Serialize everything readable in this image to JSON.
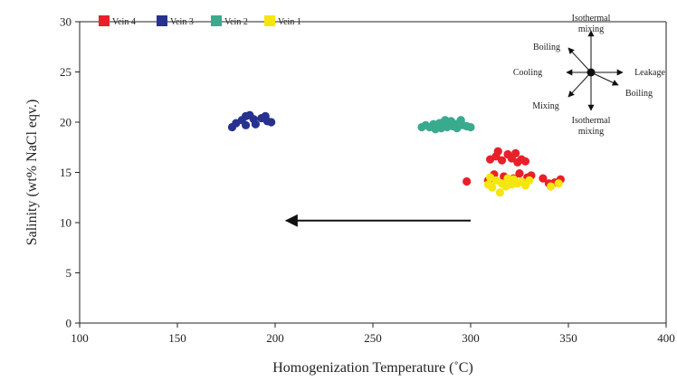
{
  "chart_data": {
    "type": "scatter",
    "xlabel": "Homogenization Temperature (˚C)",
    "ylabel": "Salinity (wt% NaCl eqv.)",
    "xlim": [
      100,
      400
    ],
    "ylim": [
      0,
      30
    ],
    "xticks": [
      "100",
      "150",
      "200",
      "250",
      "300",
      "350",
      "400"
    ],
    "yticks": [
      "0",
      "5",
      "10",
      "15",
      "20",
      "25",
      "30"
    ],
    "grid": false,
    "legend_position": "top-left",
    "series": [
      {
        "name": "Vein 4",
        "color": "#e8202a",
        "points": [
          [
            298,
            14.1
          ],
          [
            309,
            14.2
          ],
          [
            310,
            16.3
          ],
          [
            313,
            16.6
          ],
          [
            314,
            17.1
          ],
          [
            316,
            16.2
          ],
          [
            319,
            16.8
          ],
          [
            321,
            16.4
          ],
          [
            323,
            16.9
          ],
          [
            324,
            16.0
          ],
          [
            326,
            16.3
          ],
          [
            328,
            16.1
          ],
          [
            312,
            14.8
          ],
          [
            317,
            14.6
          ],
          [
            322,
            14.4
          ],
          [
            325,
            14.9
          ],
          [
            329,
            14.5
          ],
          [
            331,
            14.7
          ],
          [
            337,
            14.4
          ],
          [
            340,
            13.9
          ],
          [
            343,
            14.0
          ],
          [
            346,
            14.3
          ]
        ]
      },
      {
        "name": "Vein 3",
        "color": "#27318f",
        "points": [
          [
            178,
            19.5
          ],
          [
            180,
            19.9
          ],
          [
            183,
            20.2
          ],
          [
            185,
            20.6
          ],
          [
            187,
            20.7
          ],
          [
            189,
            20.3
          ],
          [
            185,
            19.7
          ],
          [
            190,
            19.8
          ],
          [
            193,
            20.4
          ],
          [
            195,
            20.6
          ],
          [
            196,
            20.1
          ],
          [
            198,
            20.0
          ]
        ]
      },
      {
        "name": "Vein 2",
        "color": "#3aaa8e",
        "points": [
          [
            275,
            19.5
          ],
          [
            277,
            19.7
          ],
          [
            279,
            19.5
          ],
          [
            281,
            19.8
          ],
          [
            283,
            19.6
          ],
          [
            284,
            19.9
          ],
          [
            285,
            19.4
          ],
          [
            286,
            20.0
          ],
          [
            287,
            19.7
          ],
          [
            288,
            19.5
          ],
          [
            289,
            19.9
          ],
          [
            290,
            20.1
          ],
          [
            291,
            19.6
          ],
          [
            292,
            19.8
          ],
          [
            293,
            19.4
          ],
          [
            294,
            19.9
          ],
          [
            295,
            20.2
          ],
          [
            296,
            19.7
          ],
          [
            298,
            19.6
          ],
          [
            300,
            19.5
          ],
          [
            282,
            19.3
          ],
          [
            287,
            20.2
          ]
        ]
      },
      {
        "name": "Vein 1",
        "color": "#f5e60f",
        "points": [
          [
            309,
            13.8
          ],
          [
            310,
            14.5
          ],
          [
            311,
            13.5
          ],
          [
            313,
            14.2
          ],
          [
            315,
            13.0
          ],
          [
            316,
            13.9
          ],
          [
            318,
            13.6
          ],
          [
            319,
            14.4
          ],
          [
            321,
            13.8
          ],
          [
            322,
            14.3
          ],
          [
            324,
            13.9
          ],
          [
            326,
            14.1
          ],
          [
            328,
            13.7
          ],
          [
            330,
            14.2
          ],
          [
            341,
            13.6
          ],
          [
            345,
            13.9
          ]
        ]
      }
    ],
    "arrow": {
      "from": [
        300,
        10.2
      ],
      "to": [
        208,
        10.2
      ]
    },
    "inset_labels": {
      "top": [
        "Isothermal",
        "mixing"
      ],
      "upper_left": "Boiling",
      "left": "Cooling",
      "right": "Leakage",
      "lower_right": "Boiling",
      "lower_left": "Mixing",
      "bottom": [
        "Isothermal",
        "mixing"
      ]
    }
  }
}
